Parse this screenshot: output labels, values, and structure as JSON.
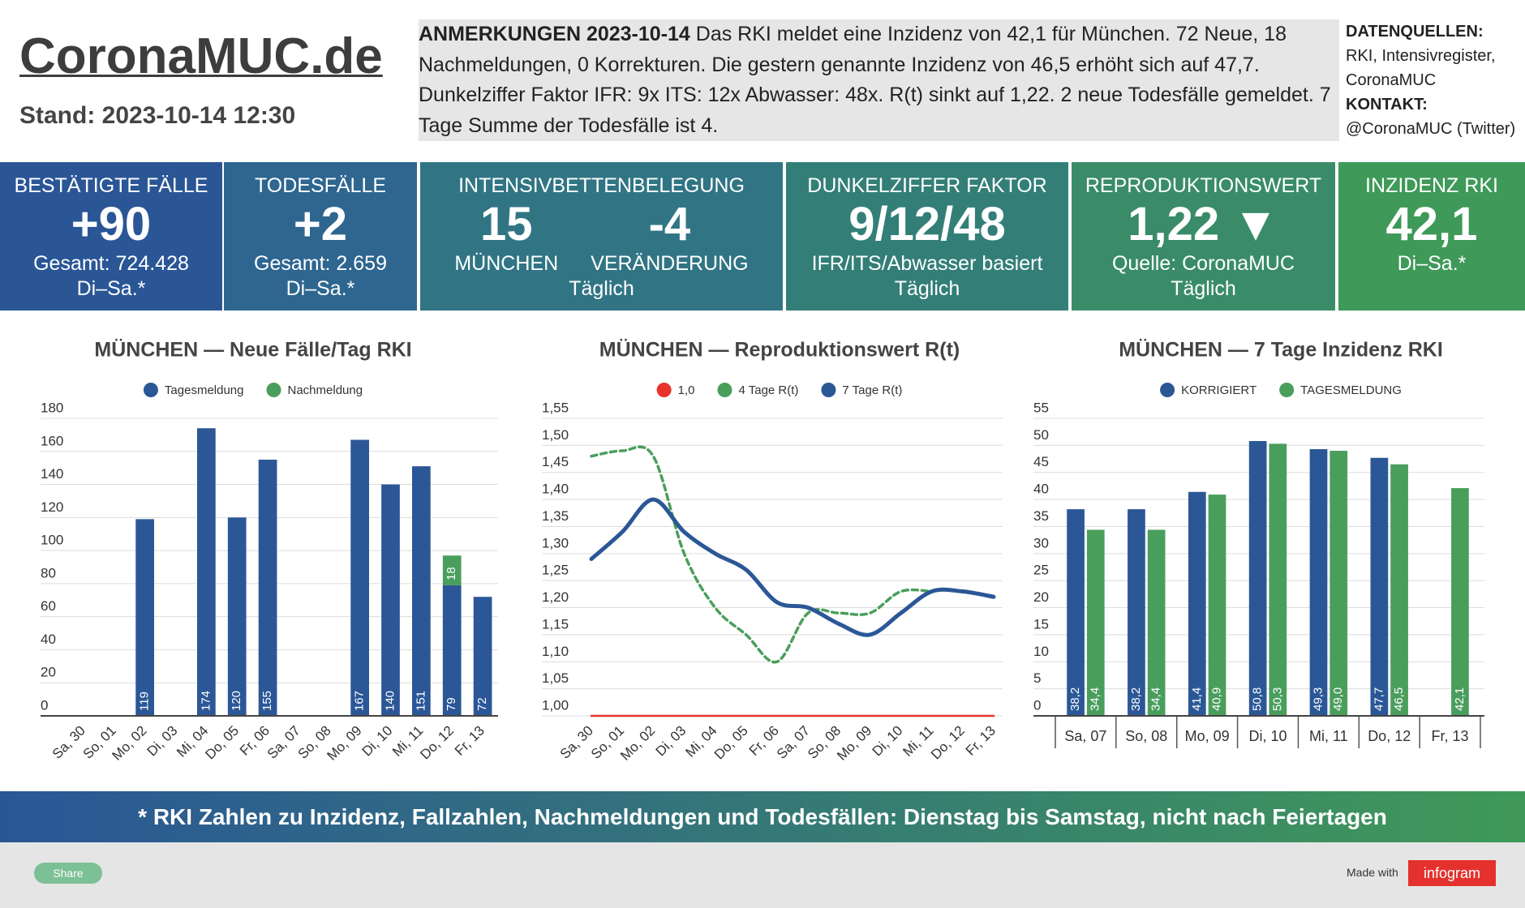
{
  "header": {
    "title": "CoronaMUC.de",
    "stand": "Stand: 2023-10-14 12:30",
    "notes_heading": "ANMERKUNGEN 2023-10-14",
    "notes": "Das RKI meldet eine Inzidenz von 42,1 für München. 72 Neue, 18 Nachmeldungen, 0 Korrekturen. Die gestern genannte Inzidenz von 46,5 erhöht sich auf 47,7. Dunkelziffer Faktor IFR: 9x ITS: 12x Abwasser: 48x. R(t) sinkt auf 1,22. 2 neue Todesfälle gemeldet. 7 Tage Summe der Todesfälle ist 4.",
    "sources_heading": "DATENQUELLEN:",
    "sources": "RKI, Intensivregister, CoronaMUC",
    "contact_heading": "KONTAKT:",
    "contact": "@CoronaMUC (Twitter)"
  },
  "kpis": [
    {
      "title": "BESTÄTIGTE FÄLLE",
      "value": "+90",
      "lines": [
        "Gesamt: 724.428",
        "Di–Sa.*"
      ]
    },
    {
      "title": "TODESFÄLLE",
      "value": "+2",
      "lines": [
        "Gesamt: 2.659",
        "Di–Sa.*"
      ]
    },
    {
      "title": "INTENSIVBETTENBELEGUNG",
      "columns": [
        {
          "value": "15",
          "label": "MÜNCHEN"
        },
        {
          "value": "-4",
          "label": "VERÄNDERUNG"
        }
      ],
      "lines": [
        "Täglich"
      ]
    },
    {
      "title": "DUNKELZIFFER FAKTOR",
      "value": "9/12/48",
      "lines": [
        "IFR/ITS/Abwasser basiert",
        "Täglich"
      ]
    },
    {
      "title": "REPRODUKTIONSWERT",
      "value": "1,22 ▼",
      "lines": [
        "Quelle: CoronaMUC",
        "Täglich"
      ]
    },
    {
      "title": "INZIDENZ RKI",
      "value": "42,1",
      "lines": [
        "Di–Sa.*"
      ]
    }
  ],
  "chart_data": [
    {
      "type": "bar",
      "title": "MÜNCHEN — Neue Fälle/Tag RKI",
      "stacked": true,
      "label_rotation": -45,
      "categories": [
        "Sa, 30",
        "So, 01",
        "Mo, 02",
        "Di, 03",
        "Mi, 04",
        "Do, 05",
        "Fr, 06",
        "Sa, 07",
        "So, 08",
        "Mo, 09",
        "Di, 10",
        "Mi, 11",
        "Do, 12",
        "Fr, 13"
      ],
      "series": [
        {
          "name": "Tagesmeldung",
          "color": "#2b5797",
          "values": [
            null,
            null,
            119,
            null,
            174,
            120,
            155,
            null,
            null,
            167,
            140,
            151,
            79,
            72
          ]
        },
        {
          "name": "Nachmeldung",
          "color": "#4a9e5c",
          "values": [
            null,
            null,
            null,
            null,
            null,
            null,
            null,
            null,
            null,
            null,
            null,
            null,
            18,
            null
          ]
        }
      ],
      "ylim": [
        0,
        180
      ],
      "yticks": [
        0,
        20,
        40,
        60,
        80,
        100,
        120,
        140,
        160,
        180
      ],
      "grid": true
    },
    {
      "type": "line",
      "title": "MÜNCHEN — Reproduktionswert R(t)",
      "label_rotation": -45,
      "categories": [
        "Sa, 30",
        "So, 01",
        "Mo, 02",
        "Di, 03",
        "Mi, 04",
        "Do, 05",
        "Fr, 06",
        "Sa, 07",
        "So, 08",
        "Mo, 09",
        "Di, 10",
        "Mi, 11",
        "Do, 12",
        "Fr, 13"
      ],
      "series": [
        {
          "name": "1,0",
          "color": "#e8322b",
          "dashed": false,
          "values": [
            1.0,
            1.0,
            1.0,
            1.0,
            1.0,
            1.0,
            1.0,
            1.0,
            1.0,
            1.0,
            1.0,
            1.0,
            1.0,
            1.0
          ]
        },
        {
          "name": "4 Tage R(t)",
          "color": "#4a9e5c",
          "dashed": true,
          "values": [
            1.48,
            1.49,
            1.48,
            1.3,
            1.2,
            1.15,
            1.1,
            1.19,
            1.19,
            1.19,
            1.23,
            1.23,
            null,
            null
          ]
        },
        {
          "name": "7 Tage R(t)",
          "color": "#2b5797",
          "dashed": false,
          "values": [
            1.29,
            1.34,
            1.4,
            1.34,
            1.3,
            1.27,
            1.21,
            1.2,
            1.17,
            1.15,
            1.19,
            1.23,
            1.23,
            1.22
          ]
        }
      ],
      "ylim": [
        1.0,
        1.55
      ],
      "yticks": [
        {
          "value": 1.0,
          "label": "1,00"
        },
        {
          "value": 1.05,
          "label": "1,05"
        },
        {
          "value": 1.1,
          "label": "1,10"
        },
        {
          "value": 1.15,
          "label": "1,15"
        },
        {
          "value": 1.2,
          "label": "1,20"
        },
        {
          "value": 1.25,
          "label": "1,25"
        },
        {
          "value": 1.3,
          "label": "1,30"
        },
        {
          "value": 1.35,
          "label": "1,35"
        },
        {
          "value": 1.4,
          "label": "1,40"
        },
        {
          "value": 1.45,
          "label": "1,45"
        },
        {
          "value": 1.5,
          "label": "1,50"
        },
        {
          "value": 1.55,
          "label": "1,55"
        }
      ],
      "grid": true
    },
    {
      "type": "bar",
      "title": "MÜNCHEN — 7 Tage Inzidenz RKI",
      "stacked": false,
      "label_rotation": 0,
      "categories": [
        "Sa, 07",
        "So, 08",
        "Mo, 09",
        "Di, 10",
        "Mi, 11",
        "Do, 12",
        "Fr, 13"
      ],
      "series": [
        {
          "name": "KORRIGIERT",
          "color": "#2b5797",
          "values": [
            38.2,
            38.2,
            41.4,
            50.8,
            49.3,
            47.7,
            null
          ],
          "value_labels": [
            "38,2",
            "38,2",
            "41,4",
            "50,8",
            "49,3",
            "47,7",
            null
          ]
        },
        {
          "name": "TAGESMELDUNG",
          "color": "#4a9e5c",
          "values": [
            34.4,
            34.4,
            40.9,
            50.3,
            49.0,
            46.5,
            42.1
          ],
          "value_labels": [
            "34,4",
            "34,4",
            "40,9",
            "50,3",
            "49,0",
            "46,5",
            "42,1"
          ]
        }
      ],
      "ylim": [
        0,
        55
      ],
      "yticks": [
        0,
        5,
        10,
        15,
        20,
        25,
        30,
        35,
        40,
        45,
        50,
        55
      ],
      "grid": true
    }
  ],
  "footer": {
    "note": "* RKI Zahlen zu Inzidenz, Fallzahlen, Nachmeldungen und Todesfällen: Dienstag bis Samstag, nicht nach Feiertagen",
    "share": "Share",
    "made_with": "Made with",
    "brand": "infogram"
  }
}
